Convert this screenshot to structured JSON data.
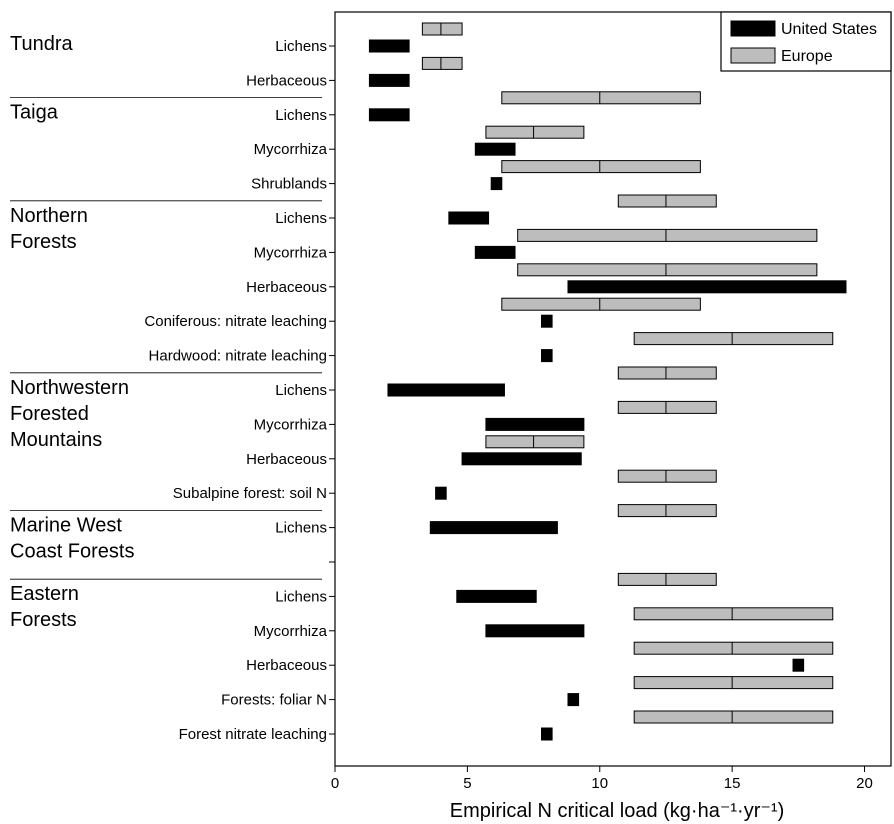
{
  "chart_data": {
    "type": "range-bar",
    "xlabel": "Empirical N critical load (kg·ha⁻¹·yr⁻¹)",
    "xlim": [
      0,
      21
    ],
    "xticks": [
      0,
      5,
      10,
      15,
      20
    ],
    "grid": false,
    "legend_position": "top-right",
    "colors": {
      "us": "#000000",
      "europe": "#bdbdbd",
      "outline": "#000000"
    },
    "series": [
      {
        "key": "us",
        "name": "United States"
      },
      {
        "key": "europe",
        "name": "Europe"
      }
    ],
    "regions": [
      {
        "lines": [
          "Tundra"
        ]
      },
      {
        "lines": [
          "Taiga"
        ]
      },
      {
        "lines": [
          "Northern",
          "Forests"
        ]
      },
      {
        "lines": [
          "Northwestern",
          "Forested",
          "Mountains"
        ]
      },
      {
        "lines": [
          "Marine West",
          "Coast Forests"
        ]
      },
      {
        "lines": [
          "Eastern",
          "Forests"
        ]
      }
    ],
    "rows": [
      {
        "label": "Lichens",
        "region": 0,
        "us": [
          1.3,
          2.8
        ],
        "europe": [
          3.3,
          4.8,
          4.0
        ]
      },
      {
        "label": "Herbaceous",
        "region": 0,
        "us": [
          1.3,
          2.8
        ],
        "europe": [
          3.3,
          4.8,
          4.0
        ]
      },
      {
        "label": "Lichens",
        "region": 1,
        "us": [
          1.3,
          2.8
        ],
        "europe": [
          6.3,
          13.8,
          10.0
        ]
      },
      {
        "label": "Mycorrhiza",
        "region": 1,
        "us": [
          5.3,
          6.8
        ],
        "europe": [
          5.7,
          9.4,
          7.5
        ]
      },
      {
        "label": "Shrublands",
        "region": 1,
        "us": [
          5.9,
          6.3
        ],
        "europe": [
          6.3,
          13.8,
          10.0
        ]
      },
      {
        "label": "Lichens",
        "region": 2,
        "us": [
          4.3,
          5.8
        ],
        "europe": [
          10.7,
          14.4,
          12.5
        ]
      },
      {
        "label": "Mycorrhiza",
        "region": 2,
        "us": [
          5.3,
          6.8
        ],
        "europe": [
          6.9,
          18.2,
          12.5
        ]
      },
      {
        "label": "Herbaceous",
        "region": 2,
        "us": [
          8.8,
          19.3
        ],
        "europe": [
          6.9,
          18.2,
          12.5
        ]
      },
      {
        "label": "Coniferous: nitrate leaching",
        "region": 2,
        "us": [
          7.8,
          8.2
        ],
        "europe": [
          6.3,
          13.8,
          10.0
        ]
      },
      {
        "label": "Hardwood: nitrate leaching",
        "region": 2,
        "us": [
          7.8,
          8.2
        ],
        "europe": [
          11.3,
          18.8,
          15.0
        ]
      },
      {
        "label": "Lichens",
        "region": 3,
        "us": [
          2.0,
          6.4
        ],
        "europe": [
          10.7,
          14.4,
          12.5
        ]
      },
      {
        "label": "Mycorrhiza",
        "region": 3,
        "us": [
          5.7,
          9.4
        ],
        "europe": [
          10.7,
          14.4,
          12.5
        ]
      },
      {
        "label": "Herbaceous",
        "region": 3,
        "us": [
          4.8,
          9.3
        ],
        "europe": [
          5.7,
          9.4,
          7.5
        ]
      },
      {
        "label": "Subalpine forest: soil N",
        "region": 3,
        "us": [
          3.8,
          4.2
        ],
        "europe": [
          10.7,
          14.4,
          12.5
        ]
      },
      {
        "label": "Lichens",
        "region": 4,
        "us": [
          3.6,
          8.4
        ],
        "europe": [
          10.7,
          14.4,
          12.5
        ]
      },
      {
        "label": "",
        "region": 4,
        "us": null,
        "europe": null
      },
      {
        "label": "Lichens",
        "region": 5,
        "us": [
          4.6,
          7.6
        ],
        "europe": [
          10.7,
          14.4,
          12.5
        ]
      },
      {
        "label": "Mycorrhiza",
        "region": 5,
        "us": [
          5.7,
          9.4
        ],
        "europe": [
          11.3,
          18.8,
          15.0
        ]
      },
      {
        "label": "Herbaceous",
        "region": 5,
        "us": [
          17.3,
          17.7
        ],
        "europe": [
          11.3,
          18.8,
          15.0
        ]
      },
      {
        "label": "Forests: foliar N",
        "region": 5,
        "us": [
          8.8,
          9.2
        ],
        "europe": [
          11.3,
          18.8,
          15.0
        ]
      },
      {
        "label": "Forest nitrate leaching",
        "region": 5,
        "us": [
          7.8,
          8.2
        ],
        "europe": [
          11.3,
          18.8,
          15.0
        ]
      }
    ]
  }
}
